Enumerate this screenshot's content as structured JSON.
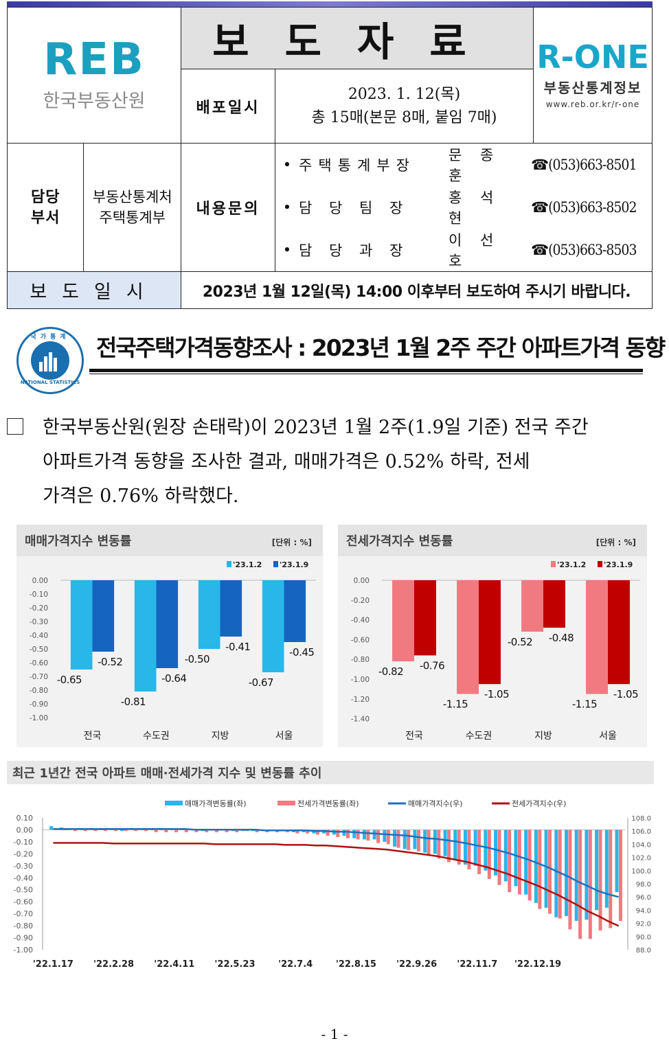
{
  "header": {
    "org_logo_text": "REB",
    "org_name": "한국부동산원",
    "doc_type": "보도자료",
    "rone_logo_text": "R-ONE",
    "rone_name": "부동산통계정보",
    "rone_url": "www.reb.or.kr/r-one",
    "release_label": "배포일시",
    "release_date": "2023. 1. 12(목)",
    "page_count": "총 15매(본문 8매, 붙임 7매)",
    "dept_label": "담당\n부서",
    "dept_value": "부동산통계처\n주택통계부",
    "inquiry_label": "내용문의",
    "contacts": [
      {
        "role": "주택통계부장",
        "name": "문 종 훈",
        "phone": "☎(053)663-8501"
      },
      {
        "role": "담 당 팀 장",
        "name": "홍 석 현",
        "phone": "☎(053)663-8502"
      },
      {
        "role": "담 당 과 장",
        "name": "이 선 호",
        "phone": "☎(053)663-8503"
      }
    ],
    "embargo_label": "보도일시",
    "embargo_text": "2023년 1월 12일(목) 14:00 이후부터 보도하여 주시기 바랍니다."
  },
  "seal": {
    "top_text": "국가통계",
    "bottom_text": "NATIONAL STATISTICS"
  },
  "title": "전국주택가격동향조사 : 2023년 1월 2주 주간 아파트가격 동향",
  "summary": {
    "line1": "한국부동산원(원장 손태락)이 2023년 1월 2주(1.9일 기준) 전국 주간",
    "line2": "아파트가격 동향을 조사한 결과, 매매가격은 0.52% 하락, 전세",
    "line3": "가격은 0.76% 하락했다."
  },
  "chart_data": [
    {
      "type": "bar",
      "title": "매매가격지수 변동률",
      "unit": "[단위 : %]",
      "categories": [
        "전국",
        "수도권",
        "지방",
        "서울"
      ],
      "series": [
        {
          "name": "'23.1.2",
          "values": [
            -0.65,
            -0.81,
            -0.5,
            -0.67
          ],
          "color": "#29b6e8"
        },
        {
          "name": "'23.1.9",
          "values": [
            -0.52,
            -0.64,
            -0.41,
            -0.45
          ],
          "color": "#1565c0"
        }
      ],
      "ylim": [
        -1.0,
        0.0
      ],
      "yticks": [
        "0.00",
        "-0.10",
        "-0.20",
        "-0.30",
        "-0.40",
        "-0.50",
        "-0.60",
        "-0.70",
        "-0.80",
        "-0.90",
        "-1.00"
      ]
    },
    {
      "type": "bar",
      "title": "전세가격지수 변동률",
      "unit": "[단위 : %]",
      "categories": [
        "전국",
        "수도권",
        "지방",
        "서울"
      ],
      "series": [
        {
          "name": "'23.1.2",
          "values": [
            -0.82,
            -1.15,
            -0.52,
            -1.15
          ],
          "color": "#f07a80"
        },
        {
          "name": "'23.1.9",
          "values": [
            -0.76,
            -1.05,
            -0.48,
            -1.05
          ],
          "color": "#c00000"
        }
      ],
      "ylim": [
        -1.4,
        0.0
      ],
      "yticks": [
        "0.00",
        "-0.20",
        "-0.40",
        "-0.60",
        "-0.80",
        "-1.00",
        "-1.20",
        "-1.40"
      ]
    },
    {
      "type": "bar+line",
      "title": "최근 1년간 전국 아파트 매매·전세가격 지수 및 변동률 추이",
      "legend": [
        "매매가격변동률(좌)",
        "전세가격변동률(좌)",
        "매매가격지수(우)",
        "전세가격지수(우)"
      ],
      "x_tick_labels": [
        "'22.1.17",
        "'22.2.28",
        "'22.4.11",
        "'22.5.23",
        "'22.7.4",
        "'22.8.15",
        "'22.9.26",
        "'22.11.7",
        "'22.12.19"
      ],
      "y_left_ticks": [
        "0.10",
        "0.00",
        "-0.10",
        "-0.20",
        "-0.30",
        "-0.40",
        "-0.50",
        "-0.60",
        "-0.70",
        "-0.80",
        "-0.90",
        "-1.00"
      ],
      "y_right_ticks": [
        "108.0",
        "106.0",
        "104.0",
        "102.0",
        "100.0",
        "98.0",
        "96.0",
        "94.0",
        "92.0",
        "90.0",
        "88.0"
      ],
      "ylim_left": [
        -1.0,
        0.1
      ],
      "ylim_right": [
        88.0,
        108.0
      ],
      "series": [
        {
          "name": "매매가격변동률(좌)",
          "kind": "bar",
          "color": "#29b6e8",
          "values": [
            0.03,
            0.02,
            0.01,
            0.0,
            0.0,
            0.0,
            0.0,
            -0.01,
            0.0,
            0.0,
            0.0,
            0.0,
            0.0,
            0.0,
            0.0,
            -0.01,
            0.0,
            0.0,
            -0.01,
            -0.01,
            -0.01,
            -0.01,
            -0.01,
            -0.01,
            -0.02,
            -0.02,
            -0.03,
            -0.03,
            -0.04,
            -0.05,
            -0.07,
            -0.08,
            -0.08,
            -0.1,
            -0.14,
            -0.16,
            -0.16,
            -0.19,
            -0.2,
            -0.22,
            -0.25,
            -0.29,
            -0.3,
            -0.34,
            -0.38,
            -0.43,
            -0.47,
            -0.54,
            -0.61,
            -0.65,
            -0.73,
            -0.72,
            -0.76,
            -0.75,
            -0.67,
            -0.65,
            -0.52
          ]
        },
        {
          "name": "전세가격변동률(좌)",
          "kind": "bar",
          "color": "#f07a80",
          "values": [
            0.01,
            0.0,
            -0.01,
            -0.01,
            -0.01,
            -0.01,
            -0.01,
            -0.01,
            -0.01,
            -0.01,
            -0.02,
            -0.02,
            -0.02,
            -0.02,
            -0.02,
            -0.02,
            -0.02,
            -0.02,
            -0.02,
            -0.01,
            -0.02,
            -0.02,
            -0.02,
            -0.02,
            -0.03,
            -0.03,
            -0.04,
            -0.05,
            -0.06,
            -0.07,
            -0.08,
            -0.09,
            -0.11,
            -0.12,
            -0.15,
            -0.17,
            -0.18,
            -0.21,
            -0.24,
            -0.27,
            -0.29,
            -0.33,
            -0.37,
            -0.41,
            -0.46,
            -0.52,
            -0.54,
            -0.59,
            -0.66,
            -0.7,
            -0.74,
            -0.83,
            -0.91,
            -0.91,
            -0.84,
            -0.82,
            -0.76
          ]
        },
        {
          "name": "매매가격지수(우)",
          "kind": "line",
          "color": "#1f6fbf",
          "values": [
            106.3,
            106.3,
            106.3,
            106.3,
            106.3,
            106.3,
            106.3,
            106.3,
            106.3,
            106.3,
            106.3,
            106.3,
            106.3,
            106.3,
            106.2,
            106.2,
            106.2,
            106.2,
            106.2,
            106.2,
            106.2,
            106.1,
            106.1,
            106.1,
            106.1,
            106.1,
            106.0,
            106.0,
            105.9,
            105.9,
            105.8,
            105.7,
            105.6,
            105.5,
            105.4,
            105.3,
            105.1,
            104.9,
            104.8,
            104.6,
            104.4,
            104.1,
            103.8,
            103.5,
            103.1,
            102.7,
            102.2,
            101.7,
            101.1,
            100.5,
            99.8,
            99.1,
            98.3,
            97.6,
            96.9,
            96.4,
            96.0
          ]
        },
        {
          "name": "전세가격지수(우)",
          "kind": "line",
          "color": "#b01010",
          "values": [
            104.2,
            104.2,
            104.2,
            104.2,
            104.2,
            104.2,
            104.1,
            104.1,
            104.1,
            104.1,
            104.1,
            104.1,
            104.1,
            104.1,
            104.1,
            104.1,
            104.0,
            104.0,
            104.0,
            104.0,
            104.0,
            104.0,
            104.0,
            103.9,
            103.9,
            103.9,
            103.8,
            103.8,
            103.7,
            103.6,
            103.5,
            103.4,
            103.3,
            103.2,
            103.0,
            102.8,
            102.6,
            102.4,
            102.2,
            101.9,
            101.6,
            101.3,
            100.9,
            100.5,
            100.0,
            99.5,
            98.9,
            98.3,
            97.7,
            97.0,
            96.3,
            95.5,
            94.7,
            93.8,
            93.1,
            92.3,
            91.6
          ]
        }
      ]
    }
  ],
  "footer": {
    "page": "- 1 -"
  }
}
